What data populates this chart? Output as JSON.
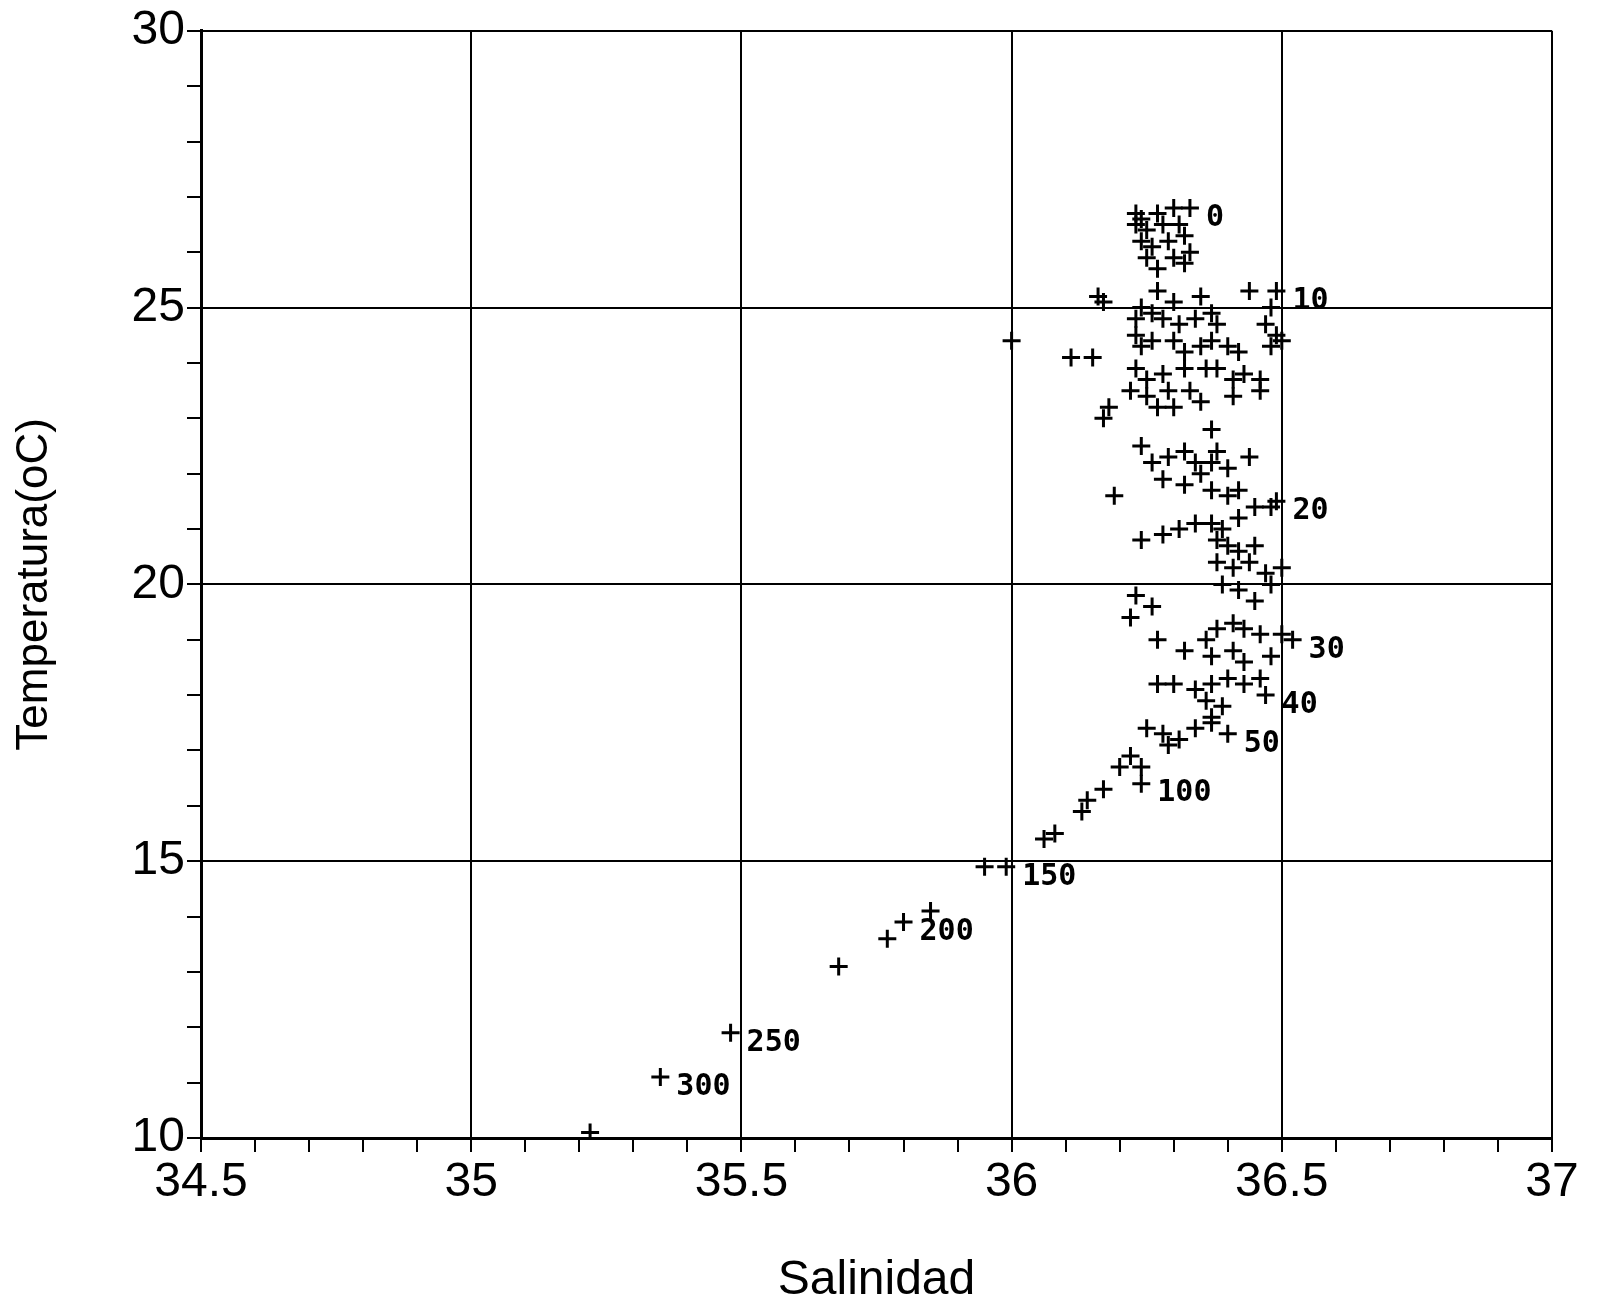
{
  "chart_data": {
    "type": "scatter",
    "xlabel": "Salinidad",
    "ylabel": "Temperatura(oC)",
    "xlim": [
      34.5,
      37
    ],
    "xticks": [
      34.5,
      {
        "value": 34.6,
        "label": null
      },
      {
        "value": 34.7,
        "label": null
      },
      {
        "value": 34.8,
        "label": null
      },
      {
        "value": 34.9,
        "label": null
      },
      35,
      {
        "value": 35.1,
        "label": null
      },
      {
        "value": 35.2,
        "label": null
      },
      {
        "value": 35.3,
        "label": null
      },
      {
        "value": 35.4,
        "label": null
      },
      35.5,
      {
        "value": 35.6,
        "label": null
      },
      {
        "value": 35.7,
        "label": null
      },
      {
        "value": 35.8,
        "label": null
      },
      {
        "value": 35.9,
        "label": null
      },
      36,
      {
        "value": 36.1,
        "label": null
      },
      {
        "value": 36.2,
        "label": null
      },
      {
        "value": 36.3,
        "label": null
      },
      {
        "value": 36.4,
        "label": null
      },
      36.5,
      {
        "value": 36.6,
        "label": null
      },
      {
        "value": 36.7,
        "label": null
      },
      {
        "value": 36.8,
        "label": null
      },
      {
        "value": 36.9,
        "label": null
      },
      37
    ],
    "ylim": [
      10,
      30
    ],
    "yticks": [
      10,
      {
        "value": 11,
        "label": null
      },
      {
        "value": 12,
        "label": null
      },
      {
        "value": 13,
        "label": null
      },
      {
        "value": 14,
        "label": null
      },
      15,
      {
        "value": 16,
        "label": null
      },
      {
        "value": 17,
        "label": null
      },
      {
        "value": 18,
        "label": null
      },
      {
        "value": 19,
        "label": null
      },
      20,
      {
        "value": 21,
        "label": null
      },
      {
        "value": 22,
        "label": null
      },
      {
        "value": 23,
        "label": null
      },
      {
        "value": 24,
        "label": null
      },
      25,
      {
        "value": 26,
        "label": null
      },
      {
        "value": 27,
        "label": null
      },
      {
        "value": 28,
        "label": null
      },
      {
        "value": 29,
        "label": null
      },
      30
    ],
    "grid": true,
    "marker": "cross",
    "legend": false,
    "series": [
      {
        "color": "#000000",
        "x": [
          36.23,
          36.24,
          36.27,
          36.3,
          36.23,
          36.25,
          36.28,
          36.31,
          36.24,
          36.26,
          36.29,
          36.32,
          36.25,
          36.3,
          36.33,
          36.27,
          36.32,
          36.16,
          36.17,
          36.27,
          36.3,
          36.35,
          36.44,
          36.48,
          36.23,
          36.24,
          36.26,
          36.28,
          36.31,
          36.34,
          36.37,
          36.38,
          36.47,
          36.49,
          36.5,
          36.48,
          36.0,
          36.11,
          36.15,
          36.23,
          36.24,
          36.26,
          36.3,
          36.32,
          36.35,
          36.37,
          36.4,
          36.42,
          36.23,
          36.25,
          36.28,
          36.32,
          36.36,
          36.38,
          36.41,
          36.43,
          36.46,
          36.22,
          36.25,
          36.29,
          36.33,
          36.35,
          36.27,
          36.3,
          36.17,
          36.18,
          36.41,
          36.46,
          36.37,
          36.24,
          36.26,
          36.29,
          36.32,
          36.34,
          36.37,
          36.38,
          36.4,
          36.28,
          36.32,
          36.35,
          36.37,
          36.42,
          36.44,
          36.4,
          36.19,
          36.24,
          36.28,
          36.31,
          36.34,
          36.37,
          36.39,
          36.42,
          36.45,
          36.48,
          36.49,
          36.38,
          36.4,
          36.42,
          36.45,
          36.38,
          36.41,
          36.44,
          36.47,
          36.5,
          36.39,
          36.42,
          36.45,
          36.48,
          36.23,
          36.22,
          36.26,
          36.27,
          36.32,
          36.36,
          36.38,
          36.41,
          36.43,
          36.46,
          36.5,
          36.37,
          36.41,
          36.43,
          36.48,
          36.27,
          36.3,
          36.34,
          36.37,
          36.4,
          36.43,
          36.46,
          36.36,
          36.39,
          36.37,
          36.25,
          36.28,
          36.31,
          36.34,
          36.37,
          36.29,
          36.24,
          36.24,
          36.22,
          36.2,
          36.17,
          36.14,
          36.13,
          36.08,
          36.06,
          35.99,
          35.95,
          35.85,
          35.8,
          35.77,
          35.68,
          35.48,
          35.35,
          35.22,
          36.33,
          36.49,
          36.52,
          36.47,
          36.4
        ],
        "values": [
          26.7,
          26.6,
          26.7,
          26.8,
          26.5,
          26.4,
          26.5,
          26.5,
          26.2,
          26.1,
          26.2,
          26.3,
          25.9,
          25.9,
          26.0,
          25.7,
          25.8,
          25.2,
          25.1,
          25.3,
          25.1,
          25.2,
          25.3,
          25.0,
          24.8,
          25.0,
          24.9,
          24.8,
          24.7,
          24.8,
          24.9,
          24.7,
          24.7,
          24.5,
          24.4,
          24.3,
          24.4,
          24.1,
          24.1,
          24.5,
          24.3,
          24.4,
          24.4,
          24.2,
          24.3,
          24.4,
          24.3,
          24.2,
          23.9,
          23.7,
          23.8,
          23.9,
          23.9,
          23.9,
          23.7,
          23.8,
          23.7,
          23.5,
          23.4,
          23.5,
          23.5,
          23.3,
          23.2,
          23.2,
          23.0,
          23.2,
          23.4,
          23.5,
          22.8,
          22.5,
          22.2,
          22.3,
          22.4,
          22.2,
          22.2,
          22.4,
          22.1,
          21.9,
          21.8,
          22.0,
          21.7,
          21.7,
          22.3,
          21.6,
          21.6,
          20.8,
          20.9,
          21.0,
          21.1,
          21.1,
          21.0,
          21.2,
          21.4,
          21.4,
          21.5,
          20.8,
          20.7,
          20.6,
          20.7,
          20.4,
          20.3,
          20.4,
          20.2,
          20.3,
          20.0,
          19.9,
          19.7,
          20.0,
          19.8,
          19.4,
          19.6,
          19.0,
          18.8,
          19.0,
          19.2,
          19.3,
          19.2,
          19.1,
          19.1,
          18.7,
          18.8,
          18.6,
          18.7,
          18.2,
          18.2,
          18.1,
          18.2,
          18.3,
          18.2,
          18.3,
          17.9,
          17.8,
          17.6,
          17.4,
          17.3,
          17.2,
          17.4,
          17.5,
          17.1,
          16.4,
          16.7,
          16.9,
          16.7,
          16.3,
          16.1,
          15.9,
          15.5,
          15.4,
          14.9,
          14.9,
          14.1,
          13.9,
          13.6,
          13.1,
          11.9,
          11.1,
          10.1,
          26.8,
          25.3,
          19.0,
          18.0,
          17.3
        ]
      }
    ],
    "annotations": [
      {
        "text": "0",
        "x": 36.33,
        "y": 26.8
      },
      {
        "text": "10",
        "x": 36.49,
        "y": 25.3
      },
      {
        "text": "20",
        "x": 36.49,
        "y": 21.5
      },
      {
        "text": "30",
        "x": 36.52,
        "y": 19.0
      },
      {
        "text": "40",
        "x": 36.47,
        "y": 18.0
      },
      {
        "text": "50",
        "x": 36.4,
        "y": 17.3
      },
      {
        "text": "100",
        "x": 36.24,
        "y": 16.4
      },
      {
        "text": "150",
        "x": 35.99,
        "y": 14.9
      },
      {
        "text": "200",
        "x": 35.8,
        "y": 13.9
      },
      {
        "text": "250",
        "x": 35.48,
        "y": 11.9
      },
      {
        "text": "300",
        "x": 35.35,
        "y": 11.1
      }
    ]
  }
}
